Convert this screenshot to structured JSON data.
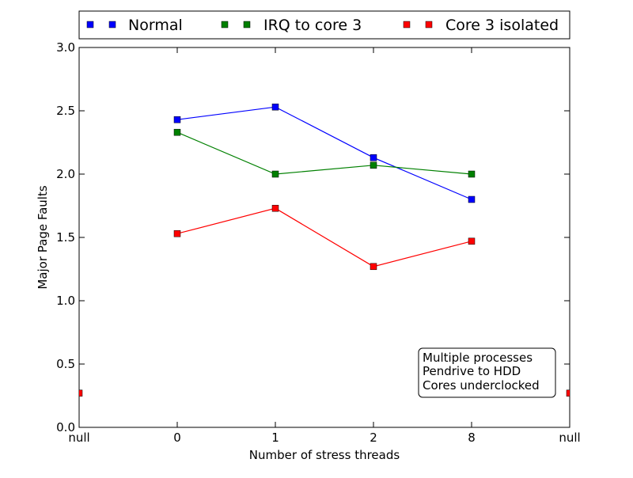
{
  "chart_data": {
    "type": "line",
    "title": "",
    "xlabel": "Number of stress threads",
    "ylabel": "Major Page Faults",
    "categories": [
      "null",
      "0",
      "1",
      "2",
      "8",
      "null"
    ],
    "ylim": [
      0.0,
      3.0
    ],
    "yticks": [
      0.0,
      0.5,
      1.0,
      1.5,
      2.0,
      2.5,
      3.0
    ],
    "ytick_labels": [
      "0.0",
      "0.5",
      "1.0",
      "1.5",
      "2.0",
      "2.5",
      "3.0"
    ],
    "grid": false,
    "legend_placement": "top, outside plot area",
    "series": [
      {
        "name": "Normal",
        "color": "#0000ff",
        "marker": "square",
        "values": [
          null,
          2.43,
          2.53,
          2.13,
          1.8,
          null
        ]
      },
      {
        "name": "IRQ to core 3",
        "color": "#008000",
        "marker": "square",
        "values": [
          null,
          2.33,
          2.0,
          2.07,
          2.0,
          null
        ]
      },
      {
        "name": "Core 3 isolated",
        "color": "#ff0000",
        "marker": "square",
        "values": [
          0.27,
          1.53,
          1.73,
          1.27,
          1.47,
          0.27
        ],
        "connected_indices": [
          1,
          2,
          3,
          4
        ]
      }
    ],
    "annotation_lines": [
      "Multiple processes",
      "Pendrive to HDD",
      "Cores underclocked"
    ],
    "annotation_placement": "bottom-right"
  }
}
